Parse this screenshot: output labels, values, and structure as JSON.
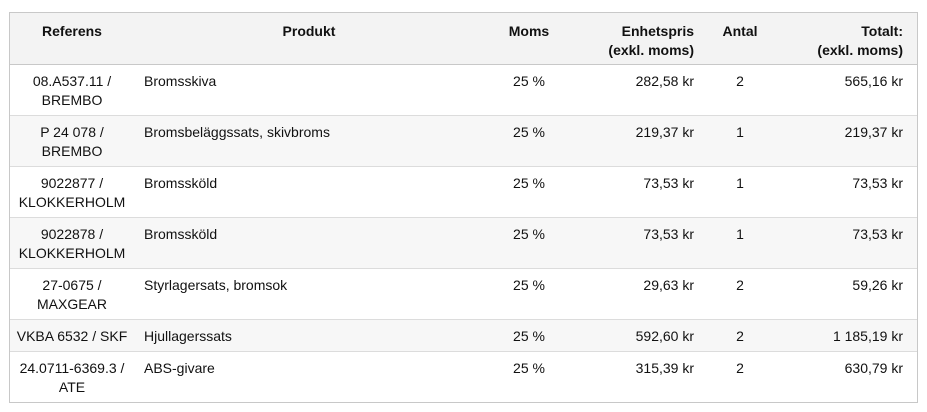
{
  "table": {
    "headers": {
      "ref": "Referens",
      "product": "Produkt",
      "vat": "Moms",
      "unit_price_line1": "Enhetspris",
      "unit_price_line2": "(exkl. moms)",
      "qty": "Antal",
      "total_line1": "Totalt:",
      "total_line2": "(exkl. moms)"
    },
    "rows": [
      {
        "ref1": "08.A537.11 /",
        "ref2": "BREMBO",
        "product": "Bromsskiva",
        "vat": "25 %",
        "unit_price": "282,58 kr",
        "qty": "2",
        "total": "565,16 kr"
      },
      {
        "ref1": "P 24 078 /",
        "ref2": "BREMBO",
        "product": "Bromsbeläggssats, skivbroms",
        "vat": "25 %",
        "unit_price": "219,37 kr",
        "qty": "1",
        "total": "219,37 kr"
      },
      {
        "ref1": "9022877 /",
        "ref2": "KLOKKERHOLM",
        "product": "Bromssköld",
        "vat": "25 %",
        "unit_price": "73,53 kr",
        "qty": "1",
        "total": "73,53 kr"
      },
      {
        "ref1": "9022878 /",
        "ref2": "KLOKKERHOLM",
        "product": "Bromssköld",
        "vat": "25 %",
        "unit_price": "73,53 kr",
        "qty": "1",
        "total": "73,53 kr"
      },
      {
        "ref1": "27-0675 /",
        "ref2": "MAXGEAR",
        "product": "Styrlagersats, bromsok",
        "vat": "25 %",
        "unit_price": "29,63 kr",
        "qty": "2",
        "total": "59,26 kr"
      },
      {
        "ref1": "VKBA 6532 / SKF",
        "ref2": "",
        "product": "Hjullagerssats",
        "vat": "25 %",
        "unit_price": "592,60 kr",
        "qty": "2",
        "total": "1 185,19 kr"
      },
      {
        "ref1": "24.0711-6369.3 /",
        "ref2": "ATE",
        "product": "ABS-givare",
        "vat": "25 %",
        "unit_price": "315,39 kr",
        "qty": "2",
        "total": "630,79 kr"
      }
    ]
  }
}
